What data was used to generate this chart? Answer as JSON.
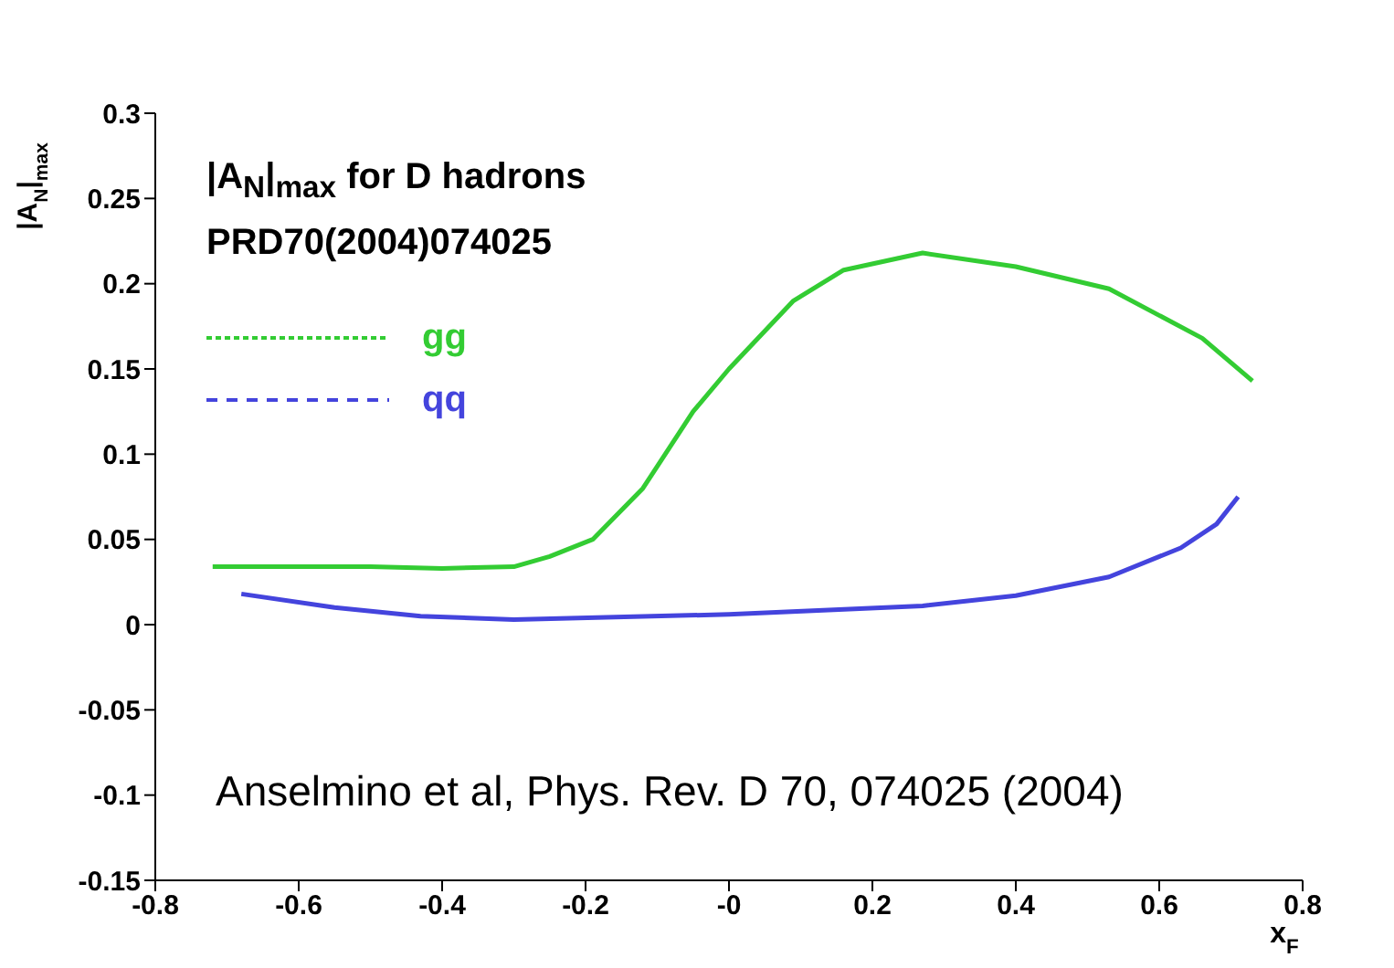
{
  "chart_data": {
    "type": "line",
    "title": "|A$_{N}$|$_{max}$ for D hadrons",
    "subtitle": "PRD70(2004)074025",
    "xlabel": "x$_{F}$",
    "ylabel": "|A$_{N}$|$_{max}$",
    "annotations": [
      "Anselmino et al, Phys. Rev. D 70, 074025 (2004)"
    ],
    "series": [
      {
        "name": "gg",
        "color": "#33cc33",
        "x": [
          -0.72,
          -0.6,
          -0.5,
          -0.4,
          -0.3,
          -0.25,
          -0.19,
          -0.12,
          -0.05,
          0,
          0.09,
          0.16,
          0.27,
          0.4,
          0.53,
          0.66,
          0.73
        ],
        "values": [
          0.034,
          0.034,
          0.034,
          0.033,
          0.034,
          0.04,
          0.05,
          0.08,
          0.125,
          0.15,
          0.19,
          0.208,
          0.218,
          0.21,
          0.197,
          0.168,
          0.143
        ]
      },
      {
        "name": "qq",
        "color": "#4444dd",
        "x": [
          -0.68,
          -0.55,
          -0.43,
          -0.3,
          0,
          0.27,
          0.4,
          0.53,
          0.63,
          0.68,
          0.71
        ],
        "values": [
          0.018,
          0.01,
          0.005,
          0.003,
          0.006,
          0.011,
          0.017,
          0.028,
          0.045,
          0.059,
          0.075
        ]
      }
    ],
    "xlim": [
      -0.8,
      0.8
    ],
    "xticks": [
      -0.8,
      -0.6,
      -0.4,
      -0.2,
      {
        "value": 0,
        "label": "-0"
      },
      0.2,
      0.4,
      0.6,
      0.8
    ],
    "ylim": [
      -0.15,
      0.3
    ],
    "yticks": [
      -0.15,
      -0.1,
      -0.05,
      0,
      0.05,
      0.1,
      0.15,
      0.2,
      0.25,
      0.3
    ],
    "legend": "top left",
    "line_style": "solid",
    "marker": "none",
    "grid": false
  }
}
